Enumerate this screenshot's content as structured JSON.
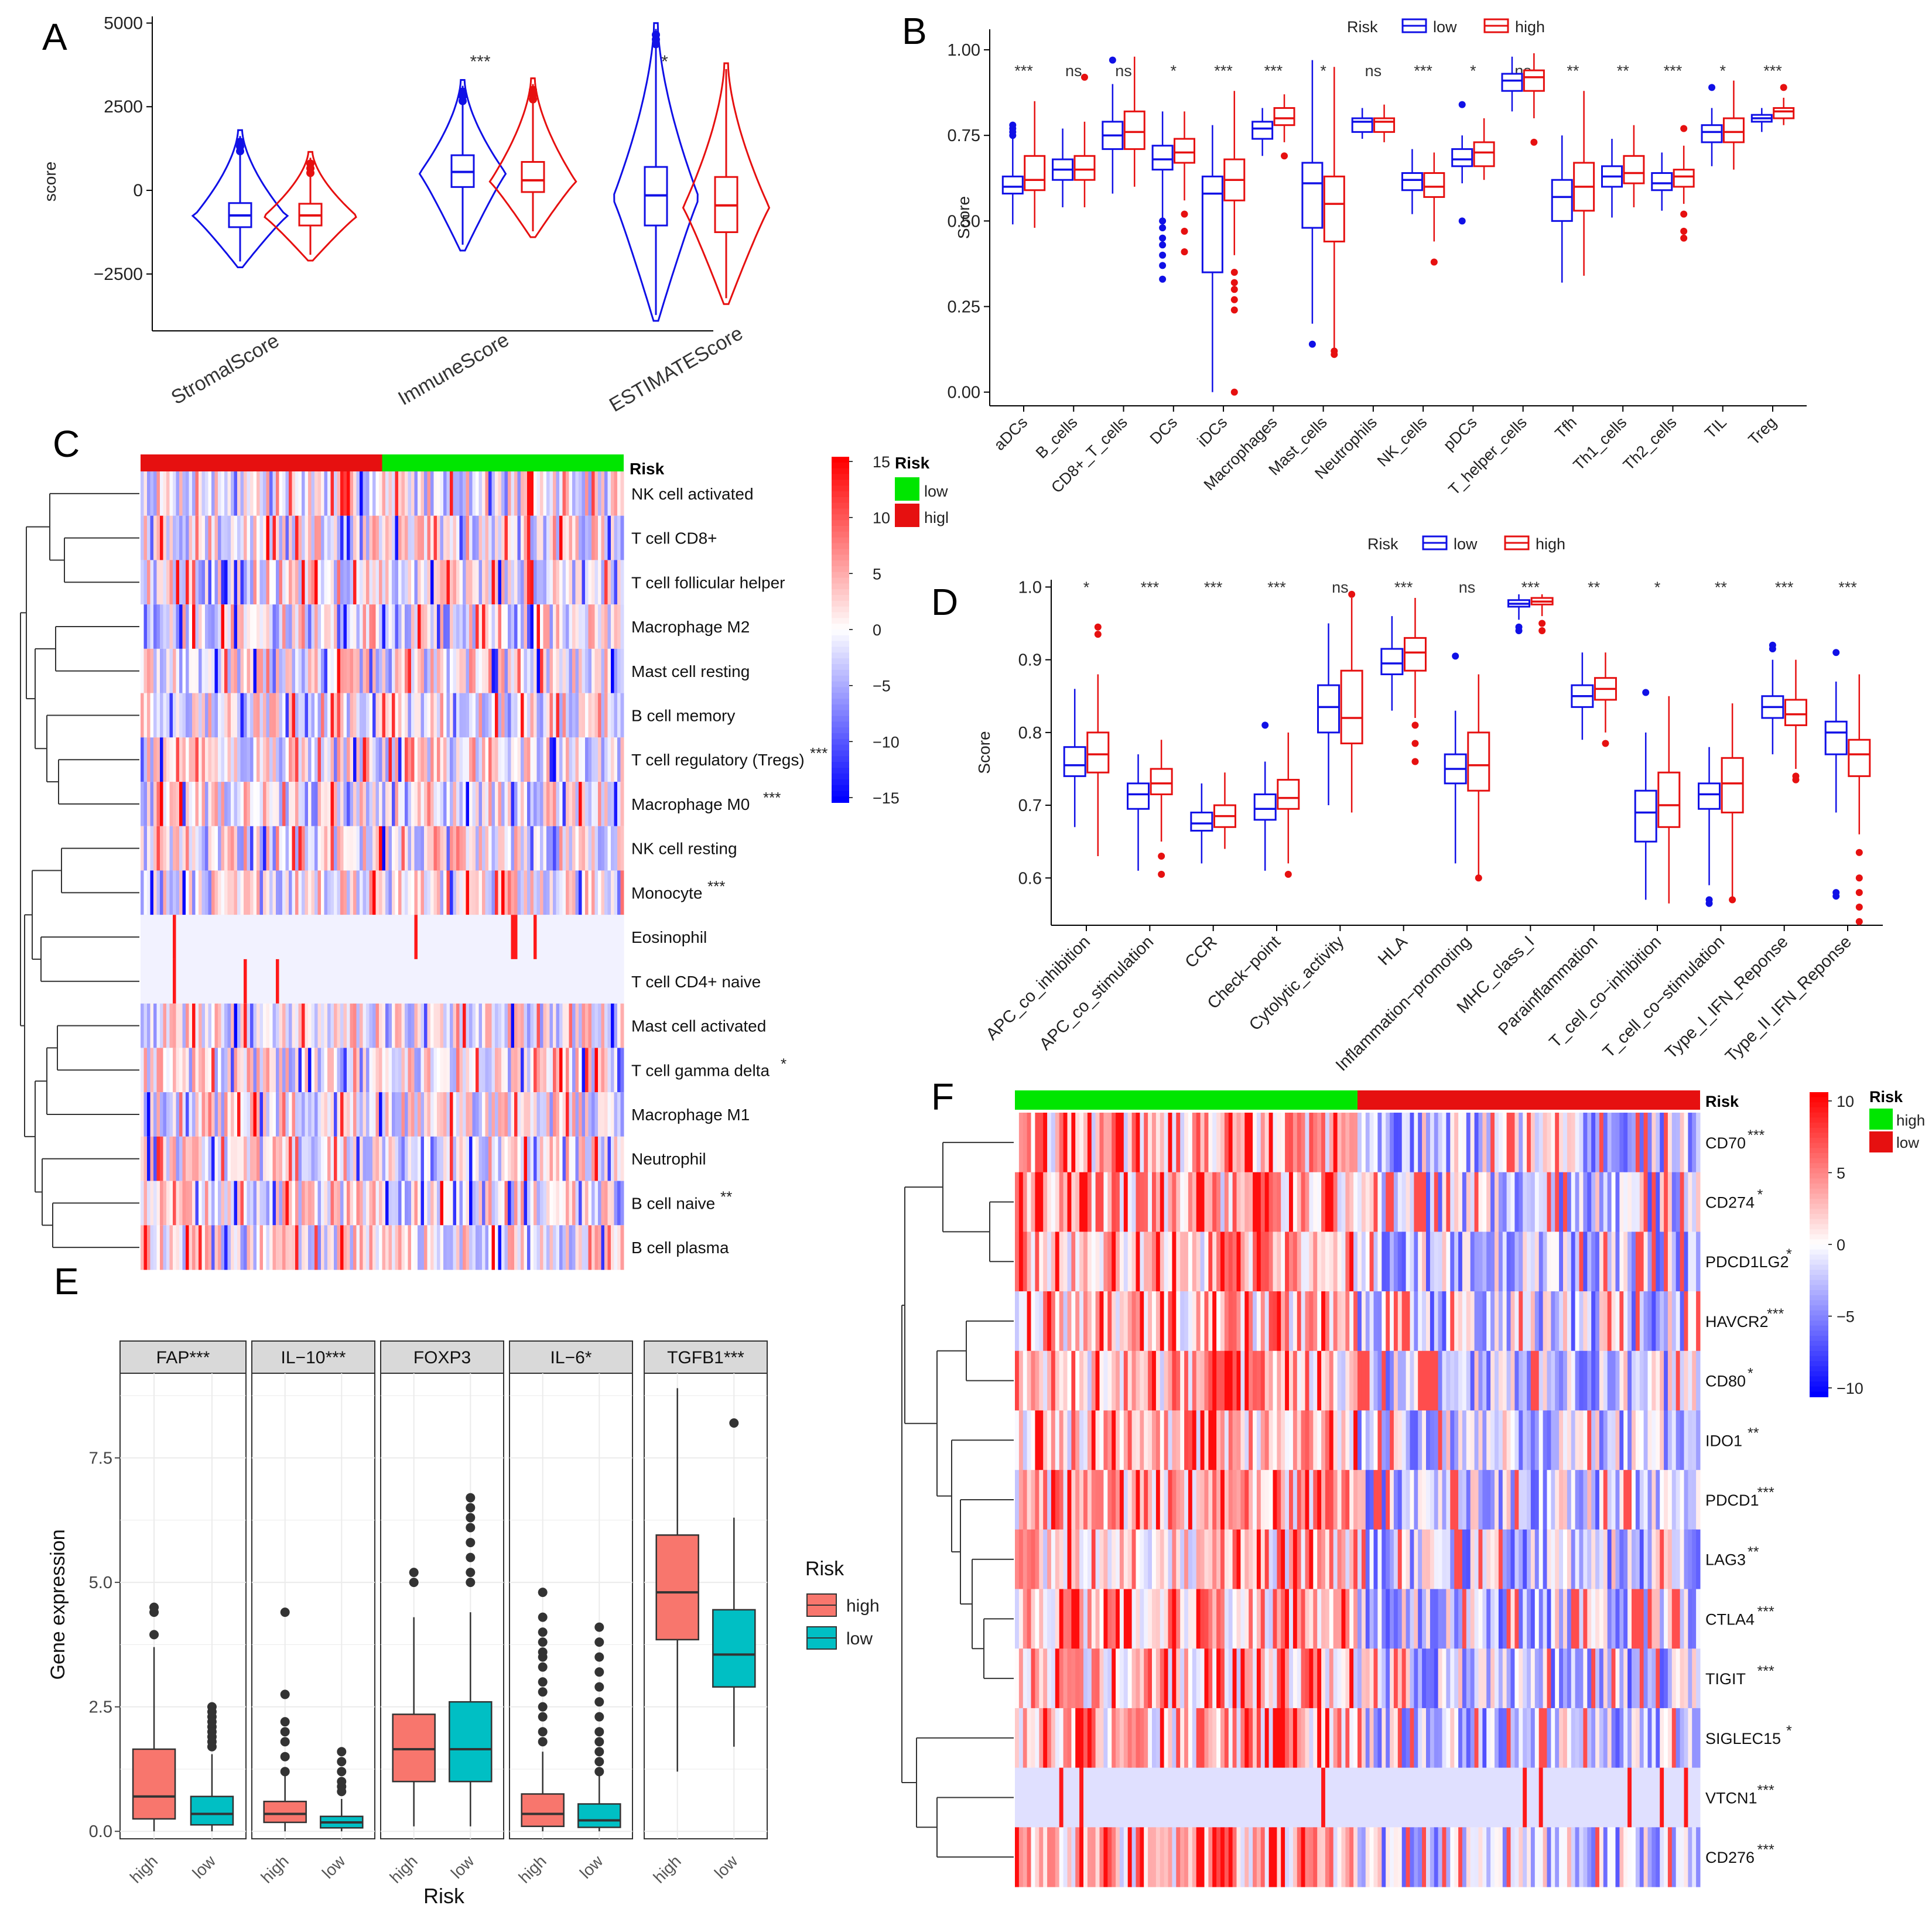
{
  "colors": {
    "low": "#1010e6",
    "high": "#e61010",
    "green": "#00e600",
    "salmon": "#f8766d",
    "teal": "#00bfc4"
  },
  "chart_data": [
    {
      "panel": "A",
      "type": "violin",
      "ylabel": "score",
      "ylim": [
        -4200,
        5200
      ],
      "yticks": [
        "5000",
        "2500",
        "0",
        "−2500"
      ],
      "ytick_values": [
        5000,
        2500,
        0,
        -2500
      ],
      "categories": [
        "StromalScore",
        "ImmuneScore",
        "ESTIMATEScore"
      ],
      "significance": [
        "",
        "***",
        "*"
      ],
      "series": [
        {
          "name": "low",
          "stats": [
            {
              "min": -2300,
              "q1": -1100,
              "median": -750,
              "q3": -380,
              "max": 1800
            },
            {
              "min": -1800,
              "q1": 100,
              "median": 550,
              "q3": 1050,
              "max": 3300
            },
            {
              "min": -3900,
              "q1": -1050,
              "median": -150,
              "q3": 700,
              "max": 5000
            }
          ]
        },
        {
          "name": "high",
          "stats": [
            {
              "min": -2100,
              "q1": -1050,
              "median": -750,
              "q3": -400,
              "max": 1150
            },
            {
              "min": -1400,
              "q1": -50,
              "median": 300,
              "q3": 850,
              "max": 3350
            },
            {
              "min": -3400,
              "q1": -1250,
              "median": -450,
              "q3": 400,
              "max": 3800
            }
          ]
        }
      ]
    },
    {
      "panel": "B",
      "type": "boxplot",
      "ylabel": "Score",
      "ylim": [
        -0.04,
        1.06
      ],
      "yticks": [
        "0.00",
        "0.25",
        "0.50",
        "0.75",
        "1.00"
      ],
      "ytick_values": [
        0,
        0.25,
        0.5,
        0.75,
        1.0
      ],
      "legend_title": "Risk",
      "legend": [
        "low",
        "high"
      ],
      "categories": [
        "aDCs",
        "B_cells",
        "CD8+_T_cells",
        "DCs",
        "iDCs",
        "Macrophages",
        "Mast_cells",
        "Neutrophils",
        "NK_cells",
        "pDCs",
        "T_helper_cells",
        "Tfh",
        "Th1_cells",
        "Th2_cells",
        "TIL",
        "Treg"
      ],
      "significance": [
        "***",
        "ns",
        "ns",
        "*",
        "***",
        "***",
        "*",
        "ns",
        "***",
        "*",
        "ns",
        "**",
        "**",
        "***",
        "*",
        "***"
      ],
      "series": [
        {
          "name": "low",
          "stats": [
            [
              0.49,
              0.58,
              0.6,
              0.63,
              0.75
            ],
            [
              0.54,
              0.62,
              0.65,
              0.68,
              0.77
            ],
            [
              0.58,
              0.71,
              0.75,
              0.79,
              0.9
            ],
            [
              0.5,
              0.65,
              0.68,
              0.72,
              0.82
            ],
            [
              0.0,
              0.35,
              0.58,
              0.63,
              0.78
            ],
            [
              0.69,
              0.74,
              0.77,
              0.79,
              0.83
            ],
            [
              0.2,
              0.48,
              0.61,
              0.67,
              0.97
            ],
            [
              0.74,
              0.76,
              0.79,
              0.8,
              0.83
            ],
            [
              0.52,
              0.59,
              0.62,
              0.64,
              0.71
            ],
            [
              0.61,
              0.66,
              0.68,
              0.71,
              0.75
            ],
            [
              0.82,
              0.88,
              0.91,
              0.93,
              0.98
            ],
            [
              0.32,
              0.5,
              0.57,
              0.62,
              0.75
            ],
            [
              0.51,
              0.6,
              0.63,
              0.66,
              0.74
            ],
            [
              0.53,
              0.59,
              0.61,
              0.64,
              0.7
            ],
            [
              0.66,
              0.73,
              0.76,
              0.78,
              0.83
            ],
            [
              0.76,
              0.79,
              0.8,
              0.81,
              0.83
            ]
          ]
        },
        {
          "name": "high",
          "stats": [
            [
              0.48,
              0.59,
              0.62,
              0.69,
              0.85
            ],
            [
              0.54,
              0.62,
              0.65,
              0.69,
              0.79
            ],
            [
              0.6,
              0.71,
              0.76,
              0.82,
              0.98
            ],
            [
              0.56,
              0.67,
              0.7,
              0.74,
              0.82
            ],
            [
              0.4,
              0.56,
              0.62,
              0.68,
              0.88
            ],
            [
              0.73,
              0.78,
              0.8,
              0.83,
              0.87
            ],
            [
              0.12,
              0.44,
              0.55,
              0.63,
              0.95
            ],
            [
              0.73,
              0.76,
              0.79,
              0.8,
              0.84
            ],
            [
              0.44,
              0.57,
              0.6,
              0.64,
              0.7
            ],
            [
              0.62,
              0.66,
              0.7,
              0.73,
              0.8
            ],
            [
              0.8,
              0.88,
              0.92,
              0.94,
              0.99
            ],
            [
              0.34,
              0.53,
              0.6,
              0.67,
              0.88
            ],
            [
              0.54,
              0.61,
              0.64,
              0.69,
              0.78
            ],
            [
              0.55,
              0.6,
              0.63,
              0.65,
              0.72
            ],
            [
              0.65,
              0.73,
              0.76,
              0.8,
              0.91
            ],
            [
              0.78,
              0.8,
              0.82,
              0.83,
              0.86
            ]
          ]
        }
      ]
    },
    {
      "panel": "C",
      "type": "heatmap",
      "annotation_label": "Risk",
      "legend_title": "Risk",
      "legend": [
        "low",
        "higl"
      ],
      "colorbar_ticks": [
        "15",
        "10",
        "5",
        "0",
        "−5",
        "−10",
        "−15"
      ],
      "colorbar_range": [
        -15,
        15
      ],
      "rows": [
        "NK cell activated",
        "T cell CD8+",
        "T cell follicular helper",
        "Macrophage M2",
        "Mast cell resting",
        "B cell memory",
        "T cell regulatory (Tregs)",
        "Macrophage M0",
        "NK cell resting",
        "Monocyte",
        "Eosinophil",
        "T cell CD4+ naive",
        "Mast cell activated",
        "T cell gamma delta",
        "Macrophage M1",
        "Neutrophil",
        "B cell naive",
        "B cell plasma"
      ],
      "significance": [
        "",
        "",
        "",
        "",
        "",
        "",
        "***",
        "***",
        "",
        "***",
        "",
        "",
        "",
        "*",
        "",
        "",
        "**",
        ""
      ]
    },
    {
      "panel": "D",
      "type": "boxplot",
      "ylabel": "Score",
      "ylim": [
        0.535,
        1.01
      ],
      "yticks": [
        "0.6",
        "0.7",
        "0.8",
        "0.9",
        "1.0"
      ],
      "ytick_values": [
        0.6,
        0.7,
        0.8,
        0.9,
        1.0
      ],
      "legend_title": "Risk",
      "legend": [
        "low",
        "high"
      ],
      "categories": [
        "APC_co_inhibition",
        "APC_co_stimulation",
        "CCR",
        "Check−point",
        "Cytolytic_activity",
        "HLA",
        "Inflammation−promoting",
        "MHC_class_I",
        "Parainflammation",
        "T_cell_co−inhibition",
        "T_cell_co−stimulation",
        "Type_I_IFN_Reponse",
        "Type_II_IFN_Reponse"
      ],
      "significance": [
        "*",
        "***",
        "***",
        "***",
        "ns",
        "***",
        "ns",
        "***",
        "**",
        "*",
        "**",
        "***",
        "***"
      ],
      "series": [
        {
          "name": "low",
          "stats": [
            [
              0.67,
              0.74,
              0.755,
              0.78,
              0.86
            ],
            [
              0.61,
              0.695,
              0.715,
              0.73,
              0.77
            ],
            [
              0.62,
              0.665,
              0.675,
              0.69,
              0.73
            ],
            [
              0.61,
              0.68,
              0.695,
              0.715,
              0.76
            ],
            [
              0.7,
              0.8,
              0.835,
              0.865,
              0.95
            ],
            [
              0.83,
              0.88,
              0.895,
              0.915,
              0.96
            ],
            [
              0.62,
              0.73,
              0.75,
              0.77,
              0.83
            ],
            [
              0.955,
              0.973,
              0.977,
              0.982,
              0.99
            ],
            [
              0.79,
              0.835,
              0.85,
              0.865,
              0.91
            ],
            [
              0.57,
              0.65,
              0.69,
              0.72,
              0.8
            ],
            [
              0.59,
              0.695,
              0.715,
              0.73,
              0.78
            ],
            [
              0.77,
              0.82,
              0.835,
              0.85,
              0.9
            ],
            [
              0.69,
              0.77,
              0.8,
              0.815,
              0.87
            ]
          ]
        },
        {
          "name": "high",
          "stats": [
            [
              0.63,
              0.745,
              0.77,
              0.8,
              0.88
            ],
            [
              0.65,
              0.715,
              0.73,
              0.75,
              0.79
            ],
            [
              0.64,
              0.67,
              0.685,
              0.7,
              0.745
            ],
            [
              0.62,
              0.695,
              0.71,
              0.735,
              0.8
            ],
            [
              0.69,
              0.785,
              0.82,
              0.885,
              0.985
            ],
            [
              0.82,
              0.885,
              0.91,
              0.93,
              0.985
            ],
            [
              0.6,
              0.72,
              0.755,
              0.8,
              0.88
            ],
            [
              0.96,
              0.976,
              0.98,
              0.985,
              0.99
            ],
            [
              0.8,
              0.845,
              0.86,
              0.875,
              0.91
            ],
            [
              0.565,
              0.67,
              0.7,
              0.745,
              0.85
            ],
            [
              0.57,
              0.69,
              0.73,
              0.765,
              0.84
            ],
            [
              0.75,
              0.81,
              0.825,
              0.845,
              0.9
            ],
            [
              0.66,
              0.74,
              0.77,
              0.79,
              0.88
            ]
          ]
        }
      ]
    },
    {
      "panel": "E",
      "type": "boxplot",
      "xlabel": "Risk",
      "ylabel": "Gene expression",
      "ylim": [
        -0.15,
        9.2
      ],
      "yticks": [
        "0.0",
        "2.5",
        "5.0",
        "7.5"
      ],
      "ytick_values": [
        0,
        2.5,
        5.0,
        7.5
      ],
      "legend_title": "Risk",
      "legend": [
        "high",
        "low"
      ],
      "facets": [
        "FAP***",
        "IL−10***",
        "FOXP3",
        "IL−6*",
        "TGFB1***"
      ],
      "categories": [
        "high",
        "low"
      ],
      "series": [
        {
          "name": "high",
          "stats": [
            [
              0.0,
              0.25,
              0.7,
              1.65,
              3.7
            ],
            [
              0.0,
              0.18,
              0.35,
              0.6,
              1.2
            ],
            [
              0.1,
              1.0,
              1.65,
              2.35,
              4.3
            ],
            [
              0.0,
              0.1,
              0.35,
              0.75,
              1.6
            ],
            [
              1.2,
              3.85,
              4.8,
              5.95,
              8.9
            ]
          ]
        },
        {
          "name": "low",
          "stats": [
            [
              0.0,
              0.13,
              0.35,
              0.7,
              1.55
            ],
            [
              0.0,
              0.07,
              0.18,
              0.3,
              0.65
            ],
            [
              0.1,
              1.0,
              1.65,
              2.6,
              4.4
            ],
            [
              0.0,
              0.08,
              0.22,
              0.55,
              1.2
            ],
            [
              1.7,
              2.9,
              3.55,
              4.45,
              6.3
            ]
          ]
        }
      ]
    },
    {
      "panel": "F",
      "type": "heatmap",
      "annotation_label": "Risk",
      "legend_title": "Risk",
      "legend": [
        "high",
        "low"
      ],
      "colorbar_ticks": [
        "10",
        "5",
        "0",
        "−5",
        "−10"
      ],
      "colorbar_range": [
        -10,
        10
      ],
      "rows": [
        "CD70",
        "CD274",
        "PDCD1LG2",
        "HAVCR2",
        "CD80",
        "IDO1",
        "PDCD1",
        "LAG3",
        "CTLA4",
        "TIGIT",
        "SIGLEC15",
        "VTCN1",
        "CD276"
      ],
      "significance": [
        "***",
        "*",
        "*",
        "***",
        "*",
        "**",
        "***",
        "**",
        "***",
        "***",
        "*",
        "***",
        "***"
      ]
    }
  ]
}
